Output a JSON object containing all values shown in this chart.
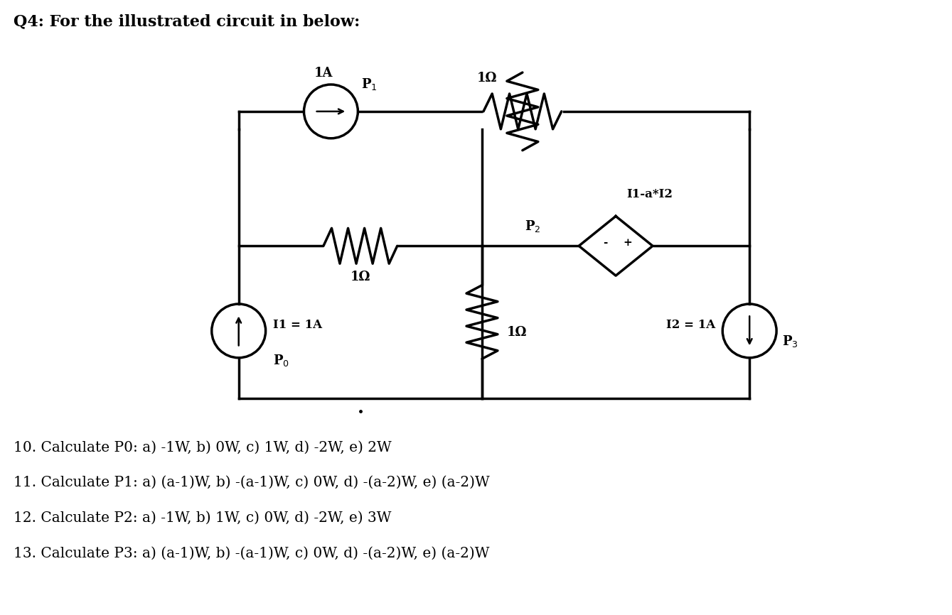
{
  "title": "Q4: For the illustrated circuit in below:",
  "title_fontsize": 16,
  "background_color": "#ffffff",
  "questions": [
    "10. Calculate P0: a) -1W, b) 0W, c) 1W, d) -2W, e) 2W",
    "11. Calculate P1: a) (a-1)W, b) -(a-1)W, c) 0W, d) -(a-2)W, e) (a-2)W",
    "12. Calculate P2: a) -1W, b) 1W, c) 0W, d) -2W, e) 3W",
    "13. Calculate P3: a) (a-1)W, b) -(a-1)W, c) 0W, d) -(a-2)W, e) (a-2)W"
  ],
  "q_fontsize": 14.5,
  "lw": 2.5
}
